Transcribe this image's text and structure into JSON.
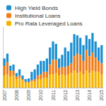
{
  "chart_data": {
    "type": "bar",
    "stacked": true,
    "legend": "top-left",
    "grid": false,
    "tick_labels": "x",
    "categories": [
      "2007",
      null,
      null,
      null,
      "2008",
      null,
      null,
      null,
      "2009",
      null,
      null,
      null,
      "2010",
      null,
      null,
      null,
      "2011",
      null,
      null,
      null,
      "2012",
      null,
      null,
      null,
      "2013",
      null,
      null,
      null,
      "2014",
      null,
      null,
      null,
      "2015"
    ],
    "ylim": [
      0,
      250
    ],
    "series": [
      {
        "name": "Pro Rata Leveraged Loans",
        "color": "#f5b400",
        "values": [
          50,
          55,
          45,
          50,
          35,
          40,
          30,
          20,
          20,
          25,
          25,
          35,
          35,
          40,
          40,
          55,
          55,
          60,
          50,
          55,
          50,
          55,
          60,
          70,
          60,
          65,
          55,
          70,
          60,
          70,
          65,
          65,
          55
        ]
      },
      {
        "name": "Institutional Loans",
        "color": "#f07d1a",
        "values": [
          40,
          50,
          25,
          20,
          10,
          10,
          5,
          5,
          3,
          5,
          10,
          15,
          20,
          25,
          25,
          40,
          60,
          55,
          30,
          30,
          35,
          35,
          40,
          60,
          80,
          70,
          55,
          85,
          70,
          75,
          60,
          45,
          45
        ]
      },
      {
        "name": "High Yield Bonds",
        "color": "#1b8fd2",
        "values": [
          30,
          35,
          20,
          25,
          15,
          25,
          15,
          10,
          15,
          35,
          40,
          45,
          55,
          45,
          55,
          70,
          75,
          65,
          40,
          50,
          80,
          60,
          85,
          90,
          75,
          70,
          65,
          60,
          70,
          80,
          65,
          55,
          75
        ]
      }
    ]
  }
}
